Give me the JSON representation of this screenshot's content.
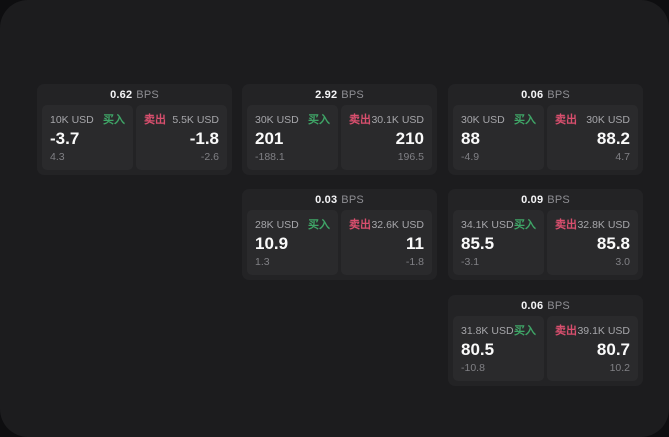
{
  "colors": {
    "buy_accent": "#3fa567",
    "sell_accent": "#d94f6e",
    "window_bg": "#1c1c1e",
    "card_bg": "#232325",
    "panel_bg": "#2a2a2c"
  },
  "bps_unit": "BPS",
  "cards": [
    {
      "bps": "0.62",
      "buy": {
        "size": "10K USD",
        "action": "买入",
        "price": "-3.7",
        "delta": "4.3"
      },
      "sell": {
        "action": "卖出",
        "size": "5.5K USD",
        "price": "-1.8",
        "delta": "-2.6"
      }
    },
    {
      "bps": "2.92",
      "buy": {
        "size": "30K USD",
        "action": "买入",
        "price": "201",
        "delta": "-188.1"
      },
      "sell": {
        "action": "卖出",
        "size": "30.1K USD",
        "price": "210",
        "delta": "196.5"
      }
    },
    {
      "bps": "0.06",
      "buy": {
        "size": "30K USD",
        "action": "买入",
        "price": "88",
        "delta": "-4.9"
      },
      "sell": {
        "action": "卖出",
        "size": "30K USD",
        "price": "88.2",
        "delta": "4.7"
      }
    },
    {
      "bps": "0.03",
      "buy": {
        "size": "28K USD",
        "action": "买入",
        "price": "10.9",
        "delta": "1.3"
      },
      "sell": {
        "action": "卖出",
        "size": "32.6K USD",
        "price": "11",
        "delta": "-1.8"
      }
    },
    {
      "bps": "0.09",
      "buy": {
        "size": "34.1K USD",
        "action": "买入",
        "price": "85.5",
        "delta": "-3.1"
      },
      "sell": {
        "action": "卖出",
        "size": "32.8K USD",
        "price": "85.8",
        "delta": "3.0"
      }
    },
    {
      "bps": "0.06",
      "buy": {
        "size": "31.8K USD",
        "action": "买入",
        "price": "80.5",
        "delta": "-10.8"
      },
      "sell": {
        "action": "卖出",
        "size": "39.1K USD",
        "price": "80.7",
        "delta": "10.2"
      }
    }
  ]
}
